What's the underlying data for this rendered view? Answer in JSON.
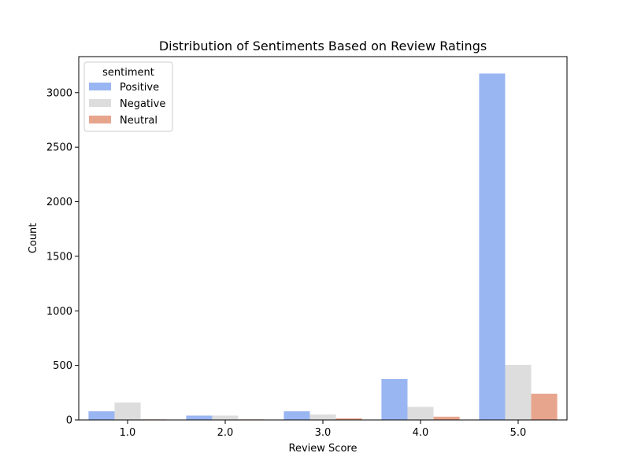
{
  "chart_data": {
    "type": "bar",
    "title": "Distribution of Sentiments Based on Review Ratings",
    "xlabel": "Review Score",
    "ylabel": "Count",
    "categories": [
      "1.0",
      "2.0",
      "3.0",
      "4.0",
      "5.0"
    ],
    "ylim": [
      0,
      3330
    ],
    "yticks": [
      0,
      500,
      1000,
      1500,
      2000,
      2500,
      3000
    ],
    "grid": false,
    "legend": {
      "title": "sentiment",
      "placement": "top-left"
    },
    "series": [
      {
        "name": "Positive",
        "color": "#9ab6f2",
        "values": [
          80,
          40,
          80,
          375,
          3175
        ]
      },
      {
        "name": "Negative",
        "color": "#dddddd",
        "values": [
          160,
          40,
          50,
          120,
          505
        ]
      },
      {
        "name": "Neutral",
        "color": "#e8a58d",
        "values": [
          5,
          5,
          15,
          30,
          240
        ]
      }
    ]
  }
}
